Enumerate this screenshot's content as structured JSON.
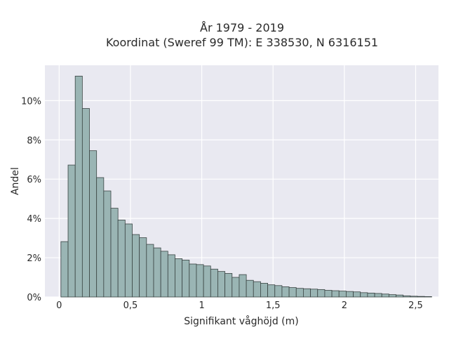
{
  "chart_data": {
    "type": "bar",
    "title": [
      "År 1979 - 2019",
      "Koordinat (Sweref 99 TM): E 338530, N 6316151"
    ],
    "xlabel": "Signifikant våghöjd (m)",
    "ylabel": "Andel",
    "xlim": [
      -0.1,
      2.66
    ],
    "ylim": [
      0,
      11.8
    ],
    "xticks": [
      {
        "value": 0,
        "label": "0"
      },
      {
        "value": 0.5,
        "label": "0,5"
      },
      {
        "value": 1,
        "label": "1"
      },
      {
        "value": 1.5,
        "label": "1,5"
      },
      {
        "value": 2,
        "label": "2"
      },
      {
        "value": 2.5,
        "label": "2,5"
      }
    ],
    "yticks": [
      {
        "value": 0,
        "label": "0%"
      },
      {
        "value": 2,
        "label": "2%"
      },
      {
        "value": 4,
        "label": "4%"
      },
      {
        "value": 6,
        "label": "6%"
      },
      {
        "value": 8,
        "label": "8%"
      },
      {
        "value": 10,
        "label": "10%"
      }
    ],
    "grid": true,
    "legend": "none",
    "bin_width": 0.05,
    "bin_start": 0.0125,
    "values_percent": [
      2.82,
      6.72,
      11.25,
      9.6,
      7.45,
      6.08,
      5.4,
      4.52,
      3.92,
      3.72,
      3.18,
      3.02,
      2.68,
      2.5,
      2.33,
      2.15,
      1.95,
      1.88,
      1.68,
      1.65,
      1.58,
      1.42,
      1.3,
      1.2,
      1.0,
      1.14,
      0.85,
      0.78,
      0.7,
      0.62,
      0.58,
      0.52,
      0.48,
      0.44,
      0.42,
      0.4,
      0.38,
      0.34,
      0.32,
      0.3,
      0.28,
      0.26,
      0.22,
      0.2,
      0.18,
      0.15,
      0.12,
      0.1,
      0.06,
      0.04,
      0.03,
      0.02
    ],
    "colors": {
      "bar_fill": "#9ab5b4",
      "bar_stroke": "#3a4443",
      "plot_bg": "#e9e9f1",
      "grid": "#ffffff"
    }
  }
}
